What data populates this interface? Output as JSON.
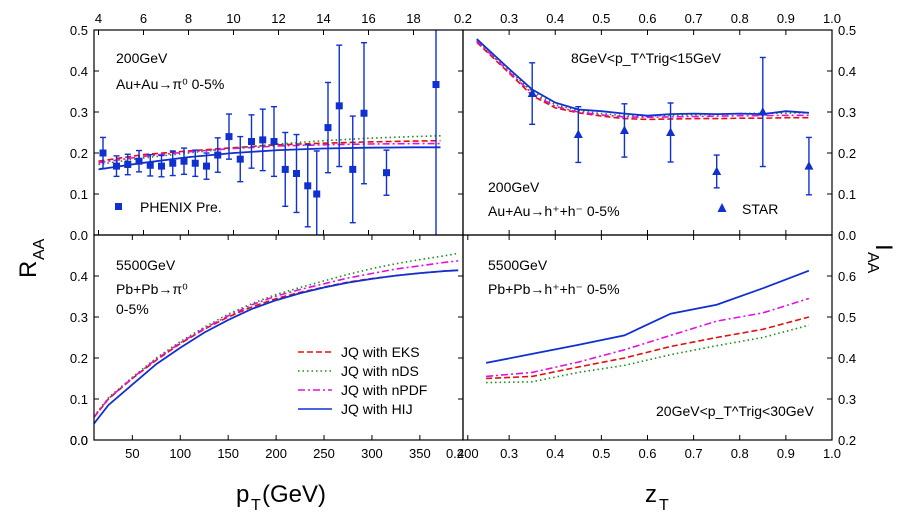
{
  "colors": {
    "EKS": "#e01010",
    "nDS": "#1a8c1a",
    "nPDF": "#e010e0",
    "HIJ": "#1030d0",
    "data": "#1030d0",
    "frame": "#000000"
  },
  "labels": {
    "xlabel_left": "p",
    "xlabel_left_sub": "T",
    "xlabel_left_tail": "(GeV)",
    "xlabel_right": "z",
    "xlabel_right_sub": "T",
    "ylabel_left": "R",
    "ylabel_left_sub": "AA",
    "ylabel_right": "I",
    "ylabel_right_sub": "AA"
  },
  "chart_data": [
    {
      "type": "line",
      "panel": "top-left",
      "annotations": [
        "200GeV",
        "Au+Au→π⁰ 0-5%"
      ],
      "top_axis_ticks": [
        "4",
        "6",
        "8",
        "10",
        "12",
        "14",
        "16",
        "18"
      ],
      "xlim": [
        3.8,
        20.2
      ],
      "ylim": [
        0,
        0.5
      ],
      "y_ticks": [
        "0.0",
        "0.1",
        "0.2",
        "0.3",
        "0.4",
        "0.5"
      ],
      "legend": [
        "PHENIX Pre."
      ],
      "series": [
        {
          "name": "JQ with EKS",
          "style": "dashed",
          "x": [
            4,
            6,
            8,
            10,
            12,
            14,
            16,
            18,
            19.2
          ],
          "y": [
            0.18,
            0.196,
            0.205,
            0.213,
            0.22,
            0.224,
            0.227,
            0.229,
            0.23
          ]
        },
        {
          "name": "JQ with nDS",
          "style": "dotted",
          "x": [
            4,
            6,
            8,
            10,
            12,
            14,
            16,
            18,
            19.2
          ],
          "y": [
            0.172,
            0.188,
            0.2,
            0.212,
            0.222,
            0.23,
            0.236,
            0.24,
            0.242
          ]
        },
        {
          "name": "JQ with nPDF",
          "style": "dashdot",
          "x": [
            4,
            6,
            8,
            10,
            12,
            14,
            16,
            18,
            19.2
          ],
          "y": [
            0.176,
            0.192,
            0.203,
            0.211,
            0.217,
            0.22,
            0.222,
            0.223,
            0.223
          ]
        },
        {
          "name": "JQ with HIJ",
          "style": "solid",
          "x": [
            4,
            6,
            8,
            10,
            12,
            14,
            16,
            18,
            19.2
          ],
          "y": [
            0.16,
            0.176,
            0.19,
            0.2,
            0.207,
            0.211,
            0.213,
            0.214,
            0.214
          ]
        }
      ],
      "points": [
        {
          "name": "PHENIX Pre.",
          "marker": "square",
          "x": [
            4.2,
            4.8,
            5.3,
            5.8,
            6.3,
            6.8,
            7.3,
            7.8,
            8.3,
            8.8,
            9.3,
            9.8,
            10.3,
            10.8,
            11.3,
            11.8,
            12.3,
            12.8,
            13.3,
            13.7,
            14.2,
            14.7,
            15.3,
            15.8,
            16.8,
            19.0
          ],
          "y": [
            0.2,
            0.168,
            0.172,
            0.18,
            0.17,
            0.168,
            0.175,
            0.18,
            0.175,
            0.168,
            0.195,
            0.24,
            0.185,
            0.228,
            0.232,
            0.228,
            0.16,
            0.15,
            0.12,
            0.1,
            0.262,
            0.315,
            0.16,
            0.297,
            0.152,
            0.367
          ],
          "err": [
            0.038,
            0.025,
            0.025,
            0.026,
            0.026,
            0.026,
            0.03,
            0.032,
            0.032,
            0.032,
            0.042,
            0.055,
            0.055,
            0.065,
            0.075,
            0.085,
            0.09,
            0.095,
            0.1,
            0.105,
            0.11,
            0.148,
            0.13,
            0.172,
            0.055,
            0.5
          ]
        }
      ]
    },
    {
      "type": "line",
      "panel": "top-right",
      "annotations": [
        "8GeV<p_T^Trig<15GeV",
        "200GeV",
        "Au+Au→h⁺+h⁻ 0-5%"
      ],
      "top_axis_ticks": [
        "0.2",
        "0.3",
        "0.4",
        "0.5",
        "0.6",
        "0.7",
        "0.8",
        "0.9",
        "1.0"
      ],
      "xlim": [
        0.2,
        1.0
      ],
      "ylim": [
        0,
        0.5
      ],
      "right_y_ticks": [
        "0.0",
        "0.1",
        "0.2",
        "0.3",
        "0.4",
        "0.5"
      ],
      "legend": [
        "STAR"
      ],
      "series": [
        {
          "name": "JQ with EKS",
          "style": "dashed",
          "x": [
            0.23,
            0.3,
            0.35,
            0.4,
            0.45,
            0.5,
            0.55,
            0.6,
            0.65,
            0.7,
            0.75,
            0.8,
            0.85,
            0.9,
            0.95
          ],
          "y": [
            0.47,
            0.395,
            0.34,
            0.31,
            0.298,
            0.29,
            0.284,
            0.282,
            0.283,
            0.284,
            0.284,
            0.285,
            0.285,
            0.286,
            0.286
          ]
        },
        {
          "name": "JQ with nDS",
          "style": "dotted",
          "x": [
            0.23,
            0.3,
            0.35,
            0.4,
            0.45,
            0.5,
            0.55,
            0.6,
            0.65,
            0.7,
            0.75,
            0.8,
            0.85,
            0.9,
            0.95
          ],
          "y": [
            0.475,
            0.4,
            0.35,
            0.318,
            0.303,
            0.296,
            0.291,
            0.29,
            0.292,
            0.293,
            0.294,
            0.296,
            0.297,
            0.297,
            0.298
          ]
        },
        {
          "name": "JQ with nPDF",
          "style": "dashdot",
          "x": [
            0.23,
            0.3,
            0.35,
            0.4,
            0.45,
            0.5,
            0.55,
            0.6,
            0.65,
            0.7,
            0.75,
            0.8,
            0.85,
            0.9,
            0.95
          ],
          "y": [
            0.473,
            0.398,
            0.345,
            0.314,
            0.3,
            0.293,
            0.288,
            0.287,
            0.288,
            0.289,
            0.29,
            0.291,
            0.291,
            0.292,
            0.292
          ]
        },
        {
          "name": "JQ with HIJ",
          "style": "solid",
          "x": [
            0.23,
            0.3,
            0.35,
            0.4,
            0.45,
            0.5,
            0.55,
            0.6,
            0.65,
            0.7,
            0.75,
            0.8,
            0.85,
            0.9,
            0.95
          ],
          "y": [
            0.478,
            0.405,
            0.355,
            0.323,
            0.306,
            0.302,
            0.296,
            0.291,
            0.295,
            0.296,
            0.295,
            0.296,
            0.295,
            0.302,
            0.298
          ]
        }
      ],
      "points": [
        {
          "name": "STAR",
          "marker": "triangle",
          "x": [
            0.35,
            0.45,
            0.55,
            0.65,
            0.75,
            0.85,
            0.95
          ],
          "y": [
            0.345,
            0.245,
            0.255,
            0.25,
            0.155,
            0.3,
            0.168
          ],
          "err": [
            0.075,
            0.068,
            0.065,
            0.072,
            0.04,
            0.133,
            0.07
          ]
        }
      ]
    },
    {
      "type": "line",
      "panel": "bottom-left",
      "annotations": [
        "5500GeV",
        "Pb+Pb→π⁰",
        "0-5%"
      ],
      "x_ticks": [
        "50",
        "100",
        "150",
        "200",
        "250",
        "300",
        "350",
        "400"
      ],
      "xlim": [
        10,
        395
      ],
      "ylim": [
        0,
        0.5
      ],
      "y_ticks": [
        "0.0",
        "0.1",
        "0.2",
        "0.3",
        "0.4"
      ],
      "legend": [
        "JQ with EKS",
        "JQ with nDS",
        "JQ with nPDF",
        "JQ with HIJ"
      ],
      "series": [
        {
          "name": "JQ with EKS",
          "style": "dashed",
          "x": [
            10,
            25,
            50,
            75,
            100,
            125,
            150,
            175,
            200,
            225,
            250,
            275,
            300,
            325,
            350,
            375,
            390
          ],
          "y": [
            0.055,
            0.1,
            0.15,
            0.195,
            0.235,
            0.27,
            0.3,
            0.325,
            0.345,
            0.36,
            0.373,
            0.385,
            0.394,
            0.401,
            0.407,
            0.412,
            0.414
          ]
        },
        {
          "name": "JQ with nDS",
          "style": "dotted",
          "x": [
            10,
            25,
            50,
            75,
            100,
            125,
            150,
            175,
            200,
            225,
            250,
            275,
            300,
            325,
            350,
            375,
            390
          ],
          "y": [
            0.058,
            0.103,
            0.153,
            0.2,
            0.24,
            0.275,
            0.307,
            0.333,
            0.355,
            0.372,
            0.388,
            0.404,
            0.418,
            0.43,
            0.44,
            0.449,
            0.455
          ]
        },
        {
          "name": "JQ with nPDF",
          "style": "dashdot",
          "x": [
            10,
            25,
            50,
            75,
            100,
            125,
            150,
            175,
            200,
            225,
            250,
            275,
            300,
            325,
            350,
            375,
            390
          ],
          "y": [
            0.056,
            0.101,
            0.151,
            0.197,
            0.237,
            0.272,
            0.303,
            0.33,
            0.351,
            0.367,
            0.381,
            0.395,
            0.406,
            0.417,
            0.425,
            0.433,
            0.437
          ]
        },
        {
          "name": "JQ with HIJ",
          "style": "solid",
          "x": [
            10,
            25,
            50,
            75,
            100,
            125,
            150,
            175,
            200,
            225,
            250,
            275,
            300,
            325,
            350,
            375,
            390
          ],
          "y": [
            0.04,
            0.085,
            0.135,
            0.185,
            0.225,
            0.262,
            0.293,
            0.32,
            0.341,
            0.358,
            0.372,
            0.384,
            0.393,
            0.401,
            0.407,
            0.412,
            0.414
          ]
        }
      ]
    },
    {
      "type": "line",
      "panel": "bottom-right",
      "annotations": [
        "5500GeV",
        "Pb+Pb→h⁺+h⁻ 0-5%",
        "20GeV<p_T^Trig<30GeV"
      ],
      "x_ticks": [
        "0.3",
        "0.4",
        "0.5",
        "0.6",
        "0.7",
        "0.8",
        "0.9",
        "1.0"
      ],
      "xlim": [
        0.2,
        1.0
      ],
      "ylim": [
        0.2,
        0.7
      ],
      "right_y_ticks": [
        "0.2",
        "0.3",
        "0.4",
        "0.5",
        "0.6"
      ],
      "series": [
        {
          "name": "JQ with EKS",
          "style": "dashed",
          "x": [
            0.25,
            0.35,
            0.45,
            0.55,
            0.65,
            0.75,
            0.85,
            0.95
          ],
          "y": [
            0.35,
            0.355,
            0.378,
            0.4,
            0.428,
            0.45,
            0.47,
            0.5
          ]
        },
        {
          "name": "JQ with nDS",
          "style": "dotted",
          "x": [
            0.25,
            0.35,
            0.45,
            0.55,
            0.65,
            0.75,
            0.85,
            0.95
          ],
          "y": [
            0.34,
            0.342,
            0.365,
            0.382,
            0.408,
            0.43,
            0.45,
            0.48
          ]
        },
        {
          "name": "JQ with nPDF",
          "style": "dashdot",
          "x": [
            0.25,
            0.35,
            0.45,
            0.55,
            0.65,
            0.75,
            0.85,
            0.95
          ],
          "y": [
            0.355,
            0.365,
            0.39,
            0.42,
            0.455,
            0.49,
            0.51,
            0.545
          ]
        },
        {
          "name": "JQ with HIJ",
          "style": "solid",
          "x": [
            0.25,
            0.35,
            0.45,
            0.55,
            0.65,
            0.75,
            0.85,
            0.95
          ],
          "y": [
            0.388,
            0.41,
            0.432,
            0.455,
            0.508,
            0.53,
            0.57,
            0.613
          ]
        }
      ]
    }
  ]
}
